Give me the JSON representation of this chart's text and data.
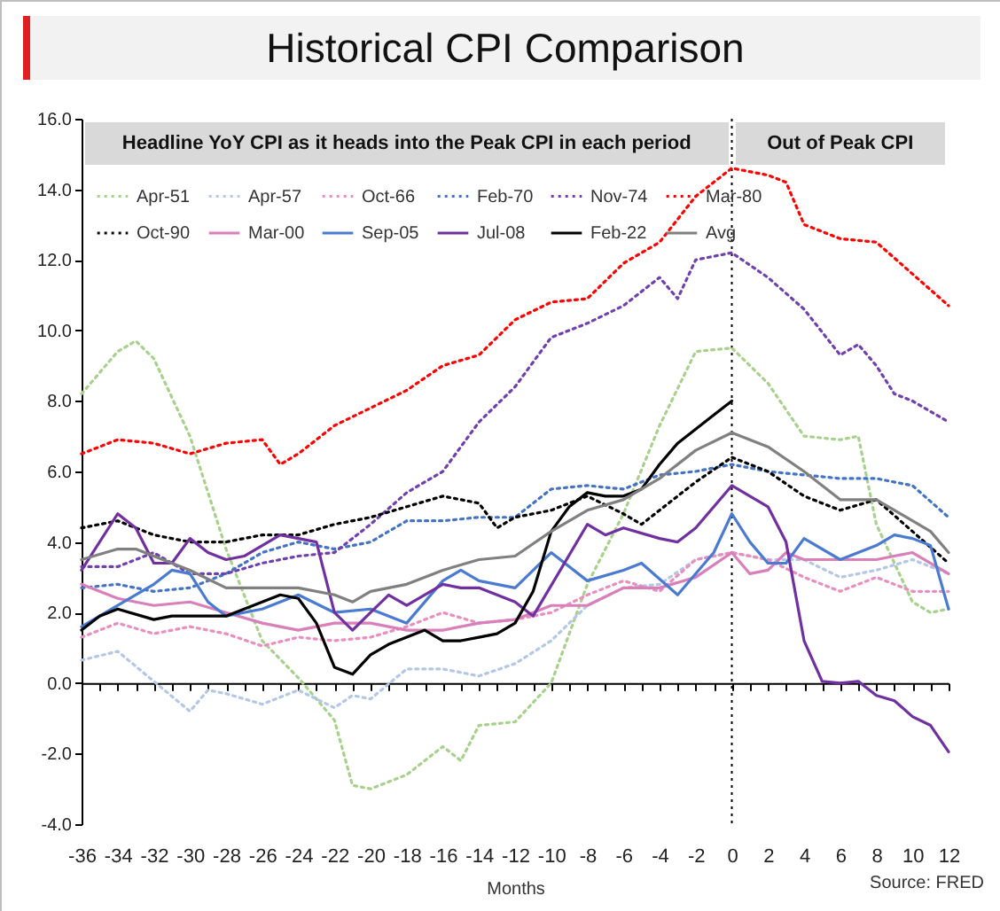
{
  "chart_data": {
    "type": "line",
    "title": "Historical CPI Comparison",
    "xlabel": "Months",
    "annotations": [
      "Headline YoY CPI as it heads into the Peak CPI in each period",
      "Out of Peak CPI",
      "Source: FRED"
    ],
    "xlim": [
      -36,
      12
    ],
    "xticks": [
      -36,
      {
        "value": -35,
        "label": null
      },
      -34,
      {
        "value": -33,
        "label": null
      },
      -32,
      {
        "value": -31,
        "label": null
      },
      -30,
      {
        "value": -29,
        "label": null
      },
      -28,
      {
        "value": -27,
        "label": null
      },
      -26,
      {
        "value": -25,
        "label": null
      },
      -24,
      {
        "value": -23,
        "label": null
      },
      -22,
      {
        "value": -21,
        "label": null
      },
      -20,
      {
        "value": -19,
        "label": null
      },
      -18,
      {
        "value": -17,
        "label": null
      },
      -16,
      {
        "value": -15,
        "label": null
      },
      -14,
      {
        "value": -13,
        "label": null
      },
      -12,
      {
        "value": -11,
        "label": null
      },
      -10,
      {
        "value": -9,
        "label": null
      },
      -8,
      {
        "value": -7,
        "label": null
      },
      -6,
      {
        "value": -5,
        "label": null
      },
      -4,
      {
        "value": -3,
        "label": null
      },
      -2,
      {
        "value": -1,
        "label": null
      },
      0,
      {
        "value": 1,
        "label": null
      },
      2,
      {
        "value": 3,
        "label": null
      },
      4,
      {
        "value": 5,
        "label": null
      },
      6,
      {
        "value": 7,
        "label": null
      },
      8,
      {
        "value": 9,
        "label": null
      },
      10,
      {
        "value": 11,
        "label": null
      },
      12
    ],
    "ylim": [
      -4,
      16
    ],
    "yticks": [
      {
        "value": -4,
        "label": "-4.0"
      },
      {
        "value": -2,
        "label": "-2.0"
      },
      {
        "value": 0,
        "label": "0.0"
      },
      {
        "value": 2,
        "label": "2.0"
      },
      {
        "value": 4,
        "label": "4.0"
      },
      {
        "value": 6,
        "label": "6.0"
      },
      {
        "value": 8,
        "label": "8.0"
      },
      {
        "value": 10,
        "label": "10.0"
      },
      {
        "value": 12,
        "label": "12.0"
      },
      {
        "value": 14,
        "label": "14.0"
      },
      {
        "value": 16,
        "label": "16.0"
      }
    ],
    "ref_lines": [
      {
        "axis": "x",
        "value": 0,
        "label": null,
        "color": "#000000",
        "line_style": "dotted"
      }
    ],
    "legend": "top left",
    "series": [
      {
        "name": "Apr-51",
        "color": "#a9d18e",
        "line_style": "dotted",
        "x": [
          -36,
          -34,
          -33,
          -32,
          -30,
          -28,
          -26,
          -24,
          -22,
          -21,
          -20,
          -18,
          -16,
          -15,
          -14,
          -12,
          -10,
          -8,
          -6,
          -4,
          -2,
          0,
          2,
          4,
          6,
          7,
          8,
          10,
          11,
          12
        ],
        "values": [
          8.2,
          9.4,
          9.7,
          9.2,
          7.0,
          3.8,
          1.2,
          0.15,
          -1.05,
          -2.9,
          -3.0,
          -2.6,
          -1.8,
          -2.2,
          -1.2,
          -1.1,
          0.0,
          2.8,
          4.8,
          7.3,
          9.4,
          9.5,
          8.5,
          7.0,
          6.9,
          7.0,
          4.5,
          2.3,
          2.0,
          2.1
        ]
      },
      {
        "name": "Apr-57",
        "color": "#b4c7e7",
        "line_style": "dotted",
        "x": [
          -36,
          -34,
          -32,
          -30,
          -29,
          -28,
          -26,
          -24,
          -22,
          -21,
          -20,
          -18,
          -16,
          -14,
          -12,
          -10,
          -8,
          -6,
          -4,
          -2,
          0,
          2,
          4,
          6,
          8,
          10,
          12
        ],
        "values": [
          0.65,
          0.9,
          0.05,
          -0.8,
          -0.2,
          -0.3,
          -0.6,
          -0.2,
          -0.7,
          -0.35,
          -0.45,
          0.4,
          0.4,
          0.2,
          0.55,
          1.2,
          2.2,
          2.7,
          2.8,
          3.5,
          3.7,
          3.5,
          3.5,
          3.0,
          3.2,
          3.5,
          3.1
        ]
      },
      {
        "name": "Oct-66",
        "color": "#e88fbf",
        "line_style": "dotted",
        "x": [
          -36,
          -34,
          -32,
          -30,
          -28,
          -26,
          -24,
          -22,
          -20,
          -18,
          -16,
          -14,
          -12,
          -10,
          -8,
          -6,
          -4,
          -2,
          0,
          2,
          4,
          6,
          8,
          10,
          12
        ],
        "values": [
          1.3,
          1.7,
          1.4,
          1.6,
          1.4,
          1.05,
          1.3,
          1.2,
          1.3,
          1.6,
          2.0,
          1.7,
          1.8,
          2.0,
          2.5,
          2.9,
          2.6,
          3.5,
          3.7,
          3.5,
          3.0,
          2.6,
          3.0,
          2.6,
          2.6
        ]
      },
      {
        "name": "Feb-70",
        "color": "#4472c4",
        "line_style": "dotted",
        "x": [
          -36,
          -34,
          -32,
          -30,
          -28,
          -26,
          -24,
          -22,
          -20,
          -18,
          -16,
          -14,
          -12,
          -10,
          -8,
          -6,
          -4,
          -2,
          0,
          2,
          4,
          6,
          8,
          10,
          12
        ],
        "values": [
          2.7,
          2.8,
          2.6,
          2.7,
          3.1,
          3.7,
          4.0,
          3.8,
          4.0,
          4.6,
          4.6,
          4.7,
          4.7,
          5.5,
          5.6,
          5.5,
          5.9,
          6.0,
          6.2,
          6.0,
          5.9,
          5.8,
          5.8,
          5.6,
          4.7
        ]
      },
      {
        "name": "Nov-74",
        "color": "#7040b0",
        "line_style": "dotted",
        "x": [
          -36,
          -34,
          -32,
          -30,
          -28,
          -26,
          -24,
          -22,
          -20,
          -18,
          -16,
          -14,
          -12,
          -10,
          -8,
          -6,
          -4,
          -3,
          -2,
          0,
          2,
          4,
          6,
          7,
          8,
          9,
          10,
          12
        ],
        "values": [
          3.3,
          3.3,
          3.7,
          3.1,
          3.1,
          3.4,
          3.6,
          3.7,
          4.5,
          5.4,
          6.0,
          7.4,
          8.4,
          9.8,
          10.2,
          10.7,
          11.5,
          10.9,
          12.0,
          12.2,
          11.5,
          10.6,
          9.3,
          9.6,
          9.0,
          8.2,
          8.0,
          7.4
        ]
      },
      {
        "name": "Mar-80",
        "color": "#ff0000",
        "line_style": "dotted",
        "x": [
          -36,
          -34,
          -32,
          -30,
          -28,
          -26,
          -25,
          -24,
          -22,
          -20,
          -18,
          -16,
          -14,
          -12,
          -10,
          -8,
          -6,
          -4,
          -2,
          0,
          2,
          3,
          4,
          6,
          8,
          10,
          12
        ],
        "values": [
          6.5,
          6.9,
          6.8,
          6.5,
          6.8,
          6.9,
          6.2,
          6.5,
          7.3,
          7.8,
          8.3,
          9.0,
          9.3,
          10.3,
          10.8,
          10.9,
          11.9,
          12.5,
          13.8,
          14.6,
          14.4,
          14.2,
          13.0,
          12.6,
          12.5,
          11.6,
          10.7
        ]
      },
      {
        "name": "Oct-90",
        "color": "#000000",
        "line_style": "dotted",
        "x": [
          -36,
          -34,
          -32,
          -30,
          -28,
          -26,
          -24,
          -22,
          -20,
          -18,
          -16,
          -14,
          -13,
          -12,
          -10,
          -8,
          -6,
          -5,
          -4,
          -2,
          0,
          2,
          4,
          6,
          8,
          10,
          12
        ],
        "values": [
          4.4,
          4.6,
          4.2,
          4.0,
          4.0,
          4.2,
          4.2,
          4.5,
          4.7,
          5.0,
          5.3,
          5.1,
          4.4,
          4.7,
          4.9,
          5.3,
          4.8,
          4.5,
          4.9,
          5.7,
          6.4,
          6.0,
          5.3,
          4.9,
          5.2,
          4.3,
          3.4
        ]
      },
      {
        "name": "Mar-00",
        "color": "#d97fb9",
        "line_style": "solid",
        "x": [
          -36,
          -34,
          -32,
          -30,
          -28,
          -26,
          -24,
          -22,
          -20,
          -18,
          -16,
          -14,
          -12,
          -10,
          -8,
          -6,
          -4,
          -2,
          0,
          1,
          2,
          3,
          4,
          6,
          8,
          10,
          12
        ],
        "values": [
          2.8,
          2.4,
          2.2,
          2.3,
          2.0,
          1.7,
          1.5,
          1.7,
          1.7,
          1.5,
          1.5,
          1.7,
          1.8,
          2.2,
          2.2,
          2.7,
          2.7,
          3.0,
          3.7,
          3.1,
          3.2,
          3.7,
          3.5,
          3.5,
          3.5,
          3.7,
          3.1
        ]
      },
      {
        "name": "Sep-05",
        "color": "#4a7bd0",
        "line_style": "solid",
        "x": [
          -36,
          -34,
          -32,
          -31,
          -30,
          -29,
          -28,
          -26,
          -24,
          -22,
          -20,
          -18,
          -16,
          -15,
          -14,
          -12,
          -10,
          -8,
          -6,
          -5,
          -3,
          -1,
          0,
          1,
          2,
          3,
          4,
          6,
          8,
          9,
          10,
          11,
          12
        ],
        "values": [
          1.6,
          2.2,
          2.8,
          3.2,
          3.1,
          2.3,
          1.9,
          2.1,
          2.5,
          2.0,
          2.1,
          1.7,
          2.9,
          3.2,
          2.9,
          2.7,
          3.7,
          2.9,
          3.2,
          3.4,
          2.5,
          3.7,
          4.8,
          4.0,
          3.4,
          3.4,
          4.1,
          3.5,
          3.9,
          4.2,
          4.1,
          3.9,
          2.1
        ]
      },
      {
        "name": "Jul-08",
        "color": "#7030a0",
        "line_style": "solid",
        "x": [
          -36,
          -34,
          -33,
          -32,
          -31,
          -30,
          -29,
          -28,
          -27,
          -25,
          -23,
          -22,
          -21,
          -20,
          -19,
          -18,
          -16,
          -15,
          -14,
          -12,
          -11,
          -8,
          -7,
          -6,
          -4,
          -3,
          -2,
          0,
          1,
          2,
          3,
          4,
          5,
          6,
          7,
          8,
          9,
          10,
          11,
          12
        ],
        "values": [
          3.2,
          4.8,
          4.4,
          3.4,
          3.4,
          4.1,
          3.7,
          3.5,
          3.6,
          4.2,
          4.0,
          2.0,
          1.5,
          2.0,
          2.5,
          2.2,
          2.8,
          2.7,
          2.7,
          2.3,
          1.9,
          4.5,
          4.2,
          4.4,
          4.1,
          4.0,
          4.4,
          5.6,
          5.3,
          5.0,
          4.0,
          1.2,
          0.05,
          0.0,
          0.05,
          -0.35,
          -0.5,
          -0.95,
          -1.2,
          -1.95
        ]
      },
      {
        "name": "Feb-22",
        "color": "#000000",
        "line_style": "solid",
        "x": [
          -36,
          -35,
          -34,
          -32,
          -31,
          -30,
          -28,
          -27,
          -26,
          -25,
          -24,
          -23,
          -22,
          -21,
          -20,
          -19,
          -18,
          -17,
          -16,
          -15,
          -14,
          -13,
          -12,
          -11,
          -10,
          -9,
          -8,
          -7,
          -6,
          -5,
          -4,
          -3,
          -2,
          -1,
          0
        ],
        "values": [
          1.5,
          1.9,
          2.1,
          1.8,
          1.9,
          1.9,
          1.9,
          2.1,
          2.3,
          2.5,
          2.4,
          1.7,
          0.45,
          0.25,
          0.8,
          1.1,
          1.3,
          1.5,
          1.2,
          1.2,
          1.3,
          1.4,
          1.7,
          2.6,
          4.3,
          5.0,
          5.4,
          5.3,
          5.3,
          5.5,
          6.2,
          6.8,
          7.2,
          7.6,
          8.0
        ]
      },
      {
        "name": "Avg",
        "color": "#808080",
        "line_style": "solid",
        "x": [
          -36,
          -34,
          -33,
          -32,
          -30,
          -28,
          -26,
          -24,
          -22,
          -21,
          -20,
          -18,
          -16,
          -14,
          -12,
          -10,
          -8,
          -6,
          -4,
          -2,
          0,
          2,
          4,
          6,
          8,
          10,
          11,
          12
        ],
        "values": [
          3.5,
          3.8,
          3.8,
          3.6,
          3.2,
          2.7,
          2.7,
          2.7,
          2.5,
          2.3,
          2.6,
          2.8,
          3.2,
          3.5,
          3.6,
          4.3,
          4.9,
          5.2,
          5.8,
          6.6,
          7.1,
          6.7,
          6.0,
          5.2,
          5.2,
          4.6,
          4.3,
          3.7
        ]
      }
    ]
  }
}
